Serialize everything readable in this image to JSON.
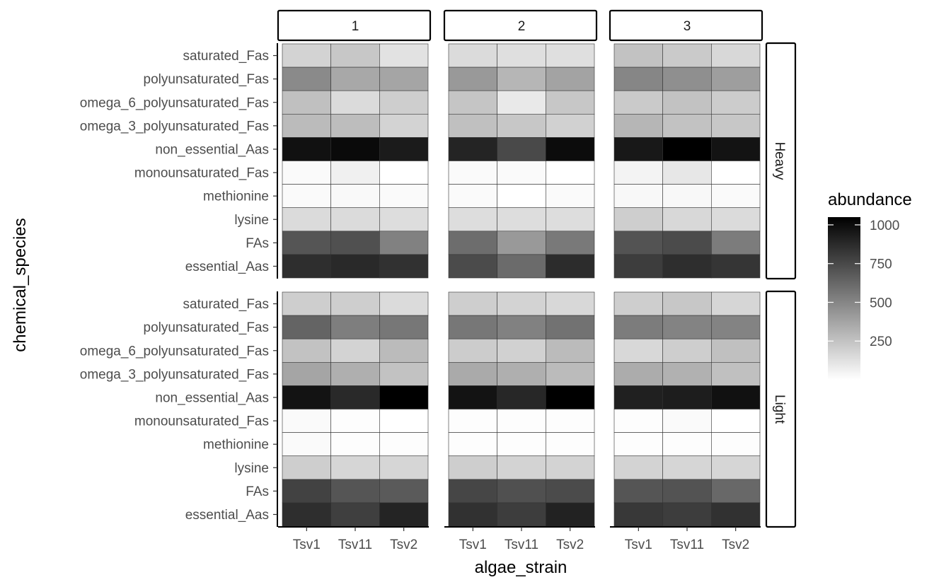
{
  "chart_data": {
    "type": "heatmap",
    "xlabel": "algae_strain",
    "ylabel": "chemical_species",
    "x_categories": [
      "Tsv1",
      "Tsv11",
      "Tsv2"
    ],
    "y_categories": [
      "saturated_Fas",
      "polyunsaturated_Fas",
      "omega_6_polyunsaturated_Fas",
      "omega_3_polyunsaturated_Fas",
      "non_essential_Aas",
      "monounsaturated_Fas",
      "methionine",
      "lysine",
      "FAs",
      "essential_Aas"
    ],
    "facet_columns": [
      "1",
      "2",
      "3"
    ],
    "facet_rows": [
      "Heavy",
      "Light"
    ],
    "legend": {
      "title": "abundance",
      "ticks": [
        250,
        500,
        750,
        1000
      ],
      "range": [
        0,
        1050
      ],
      "position": "right"
    },
    "color_scale": {
      "low": "#ffffff",
      "high": "#000000"
    },
    "panels": [
      {
        "row": "Heavy",
        "col": "1",
        "values": [
          [
            180,
            230,
            120
          ],
          [
            480,
            360,
            370
          ],
          [
            260,
            150,
            200
          ],
          [
            280,
            270,
            180
          ],
          [
            980,
            1010,
            940
          ],
          [
            20,
            60,
            0
          ],
          [
            20,
            25,
            20
          ],
          [
            150,
            150,
            140
          ],
          [
            700,
            720,
            520
          ],
          [
            860,
            880,
            850
          ]
        ]
      },
      {
        "row": "Heavy",
        "col": "2",
        "values": [
          [
            150,
            130,
            130
          ],
          [
            420,
            300,
            380
          ],
          [
            240,
            90,
            230
          ],
          [
            260,
            230,
            190
          ],
          [
            900,
            750,
            1000
          ],
          [
            20,
            20,
            0
          ],
          [
            20,
            0,
            20
          ],
          [
            140,
            140,
            140
          ],
          [
            600,
            420,
            550
          ],
          [
            740,
            610,
            870
          ]
        ]
      },
      {
        "row": "Heavy",
        "col": "3",
        "values": [
          [
            250,
            220,
            160
          ],
          [
            500,
            460,
            400
          ],
          [
            220,
            250,
            210
          ],
          [
            300,
            250,
            230
          ],
          [
            950,
            1050,
            970
          ],
          [
            50,
            100,
            0
          ],
          [
            30,
            30,
            20
          ],
          [
            200,
            160,
            150
          ],
          [
            710,
            740,
            540
          ],
          [
            800,
            860,
            830
          ]
        ]
      },
      {
        "row": "Light",
        "col": "1",
        "values": [
          [
            200,
            200,
            150
          ],
          [
            640,
            530,
            560
          ],
          [
            250,
            180,
            280
          ],
          [
            370,
            330,
            250
          ],
          [
            970,
            880,
            1060
          ],
          [
            20,
            10,
            0
          ],
          [
            20,
            10,
            10
          ],
          [
            200,
            170,
            170
          ],
          [
            780,
            700,
            680
          ],
          [
            860,
            790,
            900
          ]
        ]
      },
      {
        "row": "Light",
        "col": "2",
        "values": [
          [
            200,
            180,
            160
          ],
          [
            560,
            520,
            580
          ],
          [
            210,
            190,
            280
          ],
          [
            350,
            330,
            280
          ],
          [
            970,
            890,
            1060
          ],
          [
            10,
            10,
            10
          ],
          [
            10,
            10,
            10
          ],
          [
            200,
            180,
            180
          ],
          [
            760,
            720,
            740
          ],
          [
            850,
            800,
            910
          ]
        ]
      },
      {
        "row": "Light",
        "col": "3",
        "values": [
          [
            200,
            230,
            170
          ],
          [
            540,
            510,
            510
          ],
          [
            160,
            200,
            260
          ],
          [
            340,
            320,
            260
          ],
          [
            920,
            930,
            980
          ],
          [
            10,
            20,
            0
          ],
          [
            10,
            10,
            10
          ],
          [
            180,
            170,
            170
          ],
          [
            700,
            710,
            620
          ],
          [
            820,
            800,
            850
          ]
        ]
      }
    ]
  }
}
